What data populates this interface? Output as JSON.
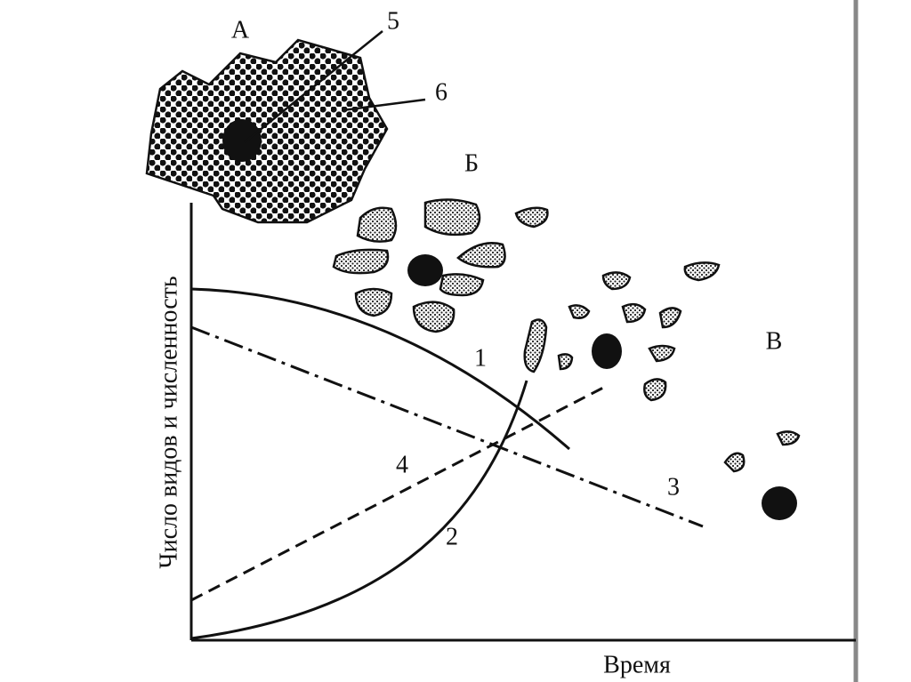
{
  "region_labels": [
    "А",
    "Б",
    "В"
  ],
  "curve_labels": [
    "1",
    "2",
    "3",
    "4"
  ],
  "callout_labels": [
    "5",
    "6"
  ],
  "axes": {
    "y_label": "Число видов и численность",
    "x_label": "Время"
  }
}
